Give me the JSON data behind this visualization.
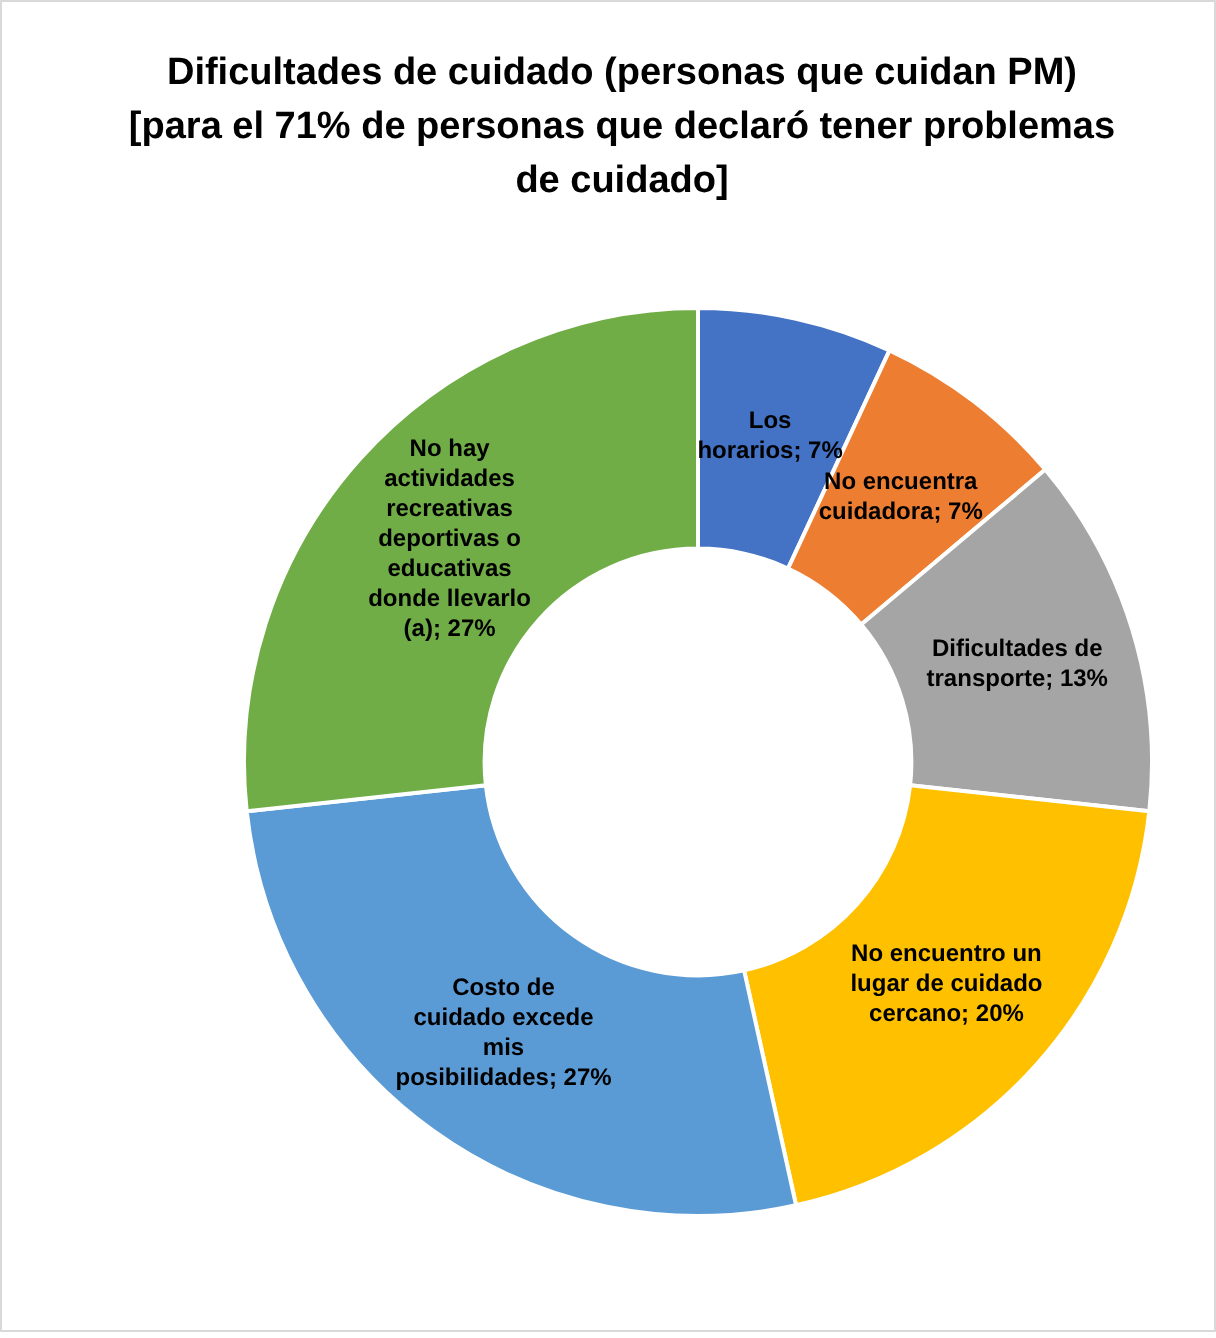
{
  "chart_data": {
    "type": "donut",
    "title": "Dificultades de cuidado (personas que cuidan PM) [para el 71% de personas que declaró tener problemas de cuidado]",
    "categories": [
      "Los horarios",
      "No encuentra cuidadora",
      "Dificultades de transporte",
      "No encuentro un lugar de cuidado cercano",
      "Costo de cuidado excede mis posibilidades",
      "No hay actividades recreativas deportivas o educativas donde llevarlo (a)"
    ],
    "values": [
      7,
      7,
      13,
      20,
      27,
      27
    ],
    "value_labels": [
      "7%",
      "7%",
      "13%",
      "20%",
      "27%",
      "27%"
    ],
    "colors": [
      "#4472c4",
      "#ed7d31",
      "#a5a5a5",
      "#ffc000",
      "#5b9bd5",
      "#70ad47"
    ],
    "legend": false
  }
}
